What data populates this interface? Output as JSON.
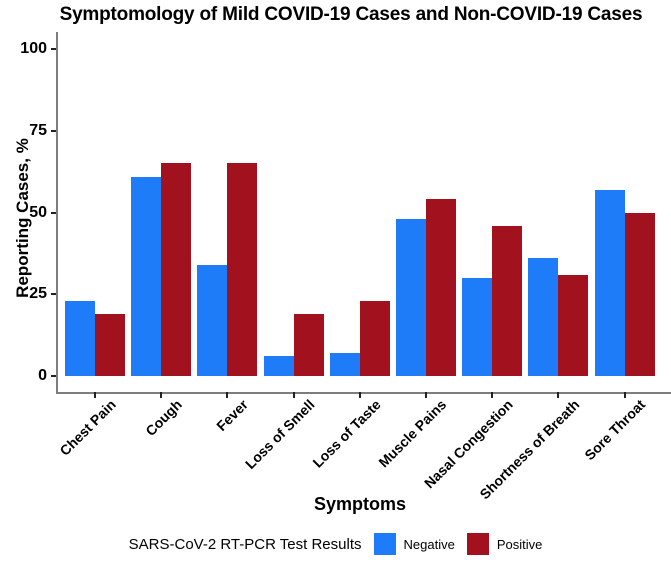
{
  "chart_data": {
    "type": "bar",
    "title": "Symptomology of Mild COVID-19 Cases and Non-COVID-19 Cases",
    "xlabel": "Symptoms",
    "ylabel": "Reporting Cases, %",
    "categories": [
      "Chest Pain",
      "Cough",
      "Fever",
      "Loss of Smell",
      "Loss of Taste",
      "Muscle Pains",
      "Nasal Congestion",
      "Shortness of Breath",
      "Sore Throat"
    ],
    "series": [
      {
        "name": "Negative",
        "color": "#1F7CF8",
        "values": [
          23,
          61,
          34,
          6,
          7,
          48,
          30,
          36,
          57
        ]
      },
      {
        "name": "Positive",
        "color": "#A2121E",
        "values": [
          19,
          65,
          65,
          19,
          23,
          54,
          46,
          31,
          50
        ]
      }
    ],
    "y_ticks": [
      0,
      25,
      50,
      75,
      100
    ],
    "ylim": [
      0,
      100
    ],
    "grid": false,
    "legend_position": "bottom",
    "legend_title": "SARS-CoV-2 RT-PCR Test Results"
  }
}
